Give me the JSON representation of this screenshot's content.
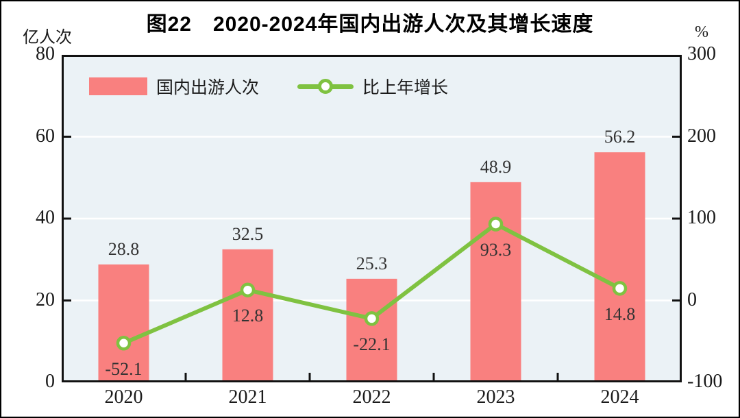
{
  "title": "图22　2020-2024年国内出游人次及其增长速度",
  "left_axis_unit": "亿人次",
  "right_axis_unit": "%",
  "legend": {
    "bar_label": "国内出游人次",
    "line_label": "比上年增长"
  },
  "colors": {
    "bar": "#f9807f",
    "line": "#7fc241",
    "marker_fill": "#ffffff",
    "plot_bg": "#ebf2f6",
    "grid": "#ffffff",
    "axis": "#111111",
    "data_label": "#333333"
  },
  "chart_data": {
    "type": "bar+line combo",
    "title": "图22　2020-2024年国内出游人次及其增长速度",
    "categories": [
      "2020",
      "2021",
      "2022",
      "2023",
      "2024"
    ],
    "series": [
      {
        "name": "国内出游人次",
        "type": "bar",
        "axis": "left",
        "unit": "亿人次",
        "values": [
          28.8,
          32.5,
          25.3,
          48.9,
          56.2
        ]
      },
      {
        "name": "比上年增长",
        "type": "line",
        "axis": "right",
        "unit": "%",
        "values": [
          -52.1,
          12.8,
          -22.1,
          93.3,
          14.8
        ]
      }
    ],
    "left_axis": {
      "label": "亿人次",
      "min": 0,
      "max": 80,
      "ticks": [
        80,
        60,
        40,
        20,
        0
      ]
    },
    "right_axis": {
      "label": "%",
      "min": -100,
      "max": 300,
      "ticks": [
        300,
        200,
        100,
        0,
        -100
      ]
    },
    "grid": "horizontal white gridlines at left-axis 20/40/60",
    "legend_position": "top-left inside plot"
  }
}
